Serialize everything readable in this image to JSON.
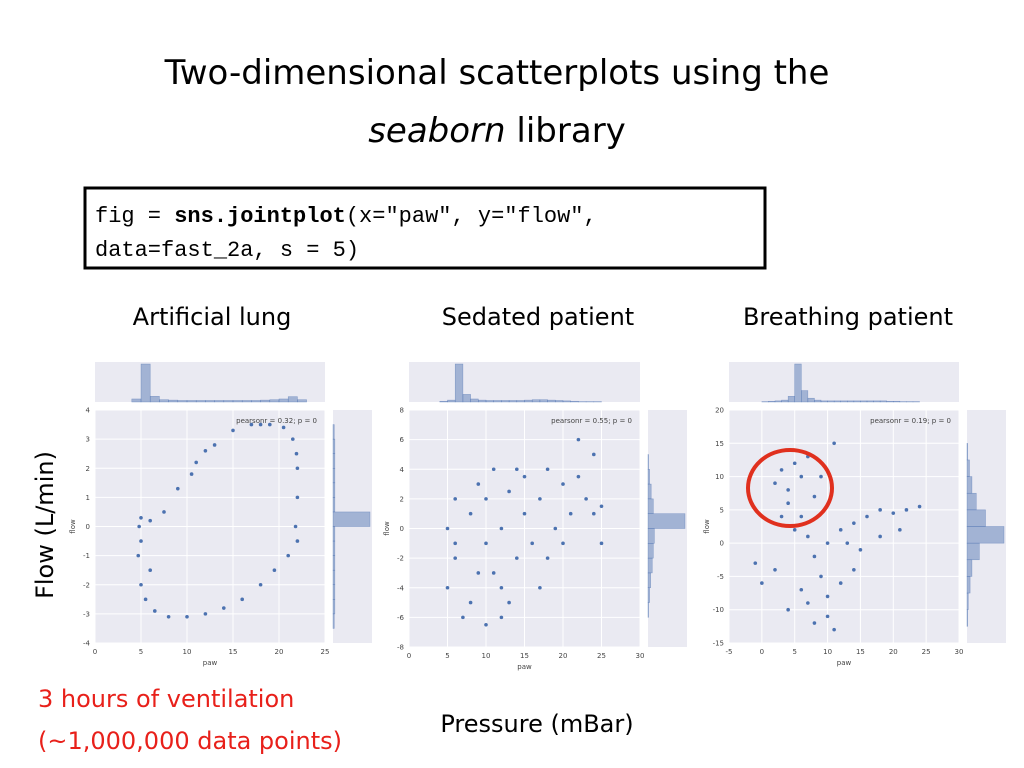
{
  "title": "Two-dimensional scatterplots using the",
  "title_italic": "seaborn",
  "title_end": "library",
  "code": {
    "line1_prefix": "fig = ",
    "line1_bold": "sns.jointplot",
    "line1_rest": "(x=\"paw\", y=\"flow\",",
    "line2": "data=fast_2a, s = 5)"
  },
  "y_label": "Flow (L/min)",
  "x_label": "Pressure (mBar)",
  "note_lines": [
    "3 hours of ventilation",
    "(~1,000,000 data points)"
  ],
  "chart_data": [
    {
      "type": "scatter",
      "title": "Artificial lung",
      "xlabel": "paw",
      "ylabel": "flow",
      "annotation": "pearsonr = 0.32; p = 0",
      "xlim": [
        0,
        25
      ],
      "xticks": [
        0,
        5,
        10,
        15,
        20,
        25
      ],
      "ylim": [
        -4,
        4
      ],
      "yticks": [
        -4,
        -3,
        -2,
        -1,
        0,
        1,
        2,
        3,
        4
      ],
      "grid": true,
      "series": [
        {
          "color": "#4c72b0",
          "x": [
            4.8,
            4.7,
            5,
            5.5,
            6.5,
            8,
            10,
            12,
            14,
            16,
            18,
            19.5,
            21,
            21.8,
            22,
            22,
            21.5,
            20.5,
            19,
            17,
            15,
            13,
            11,
            9,
            7.5,
            6,
            5,
            5,
            6,
            22,
            21.9,
            10.5,
            18,
            12
          ],
          "values": [
            0,
            -1,
            -2,
            -2.5,
            -2.9,
            -3.1,
            -3.1,
            -3,
            -2.8,
            -2.5,
            -2,
            -1.5,
            -1,
            0,
            1,
            2,
            3,
            3.4,
            3.5,
            3.5,
            3.3,
            2.8,
            2.2,
            1.3,
            0.5,
            0.2,
            0.3,
            -0.5,
            -1.5,
            -0.5,
            2.5,
            1.8,
            3.5,
            2.6
          ]
        }
      ],
      "x_hist": {
        "bins": [
          0,
          1,
          2,
          3,
          4,
          5,
          6,
          7,
          8,
          9,
          10,
          11,
          12,
          13,
          14,
          15,
          16,
          17,
          18,
          19,
          20,
          21,
          22,
          23,
          24,
          25
        ],
        "counts": [
          0,
          0,
          0,
          0,
          8,
          100,
          15,
          6,
          5,
          4,
          4,
          4,
          4,
          4,
          4,
          4,
          4,
          4,
          5,
          6,
          8,
          14,
          6,
          0,
          0
        ]
      },
      "y_hist": {
        "bins": [
          -4,
          -3.5,
          -3,
          -2.5,
          -2,
          -1.5,
          -1,
          -0.5,
          0,
          0.5,
          1,
          1.5,
          2,
          2.5,
          3,
          3.5,
          4
        ],
        "counts": [
          0,
          2,
          3,
          3,
          3,
          3,
          3,
          3,
          60,
          3,
          3,
          3,
          3,
          3,
          2,
          0
        ]
      }
    },
    {
      "type": "scatter",
      "title": "Sedated patient",
      "xlabel": "paw",
      "ylabel": "flow",
      "annotation": "pearsonr = 0.55; p = 0",
      "xlim": [
        0,
        30
      ],
      "xticks": [
        0,
        5,
        10,
        15,
        20,
        25,
        30
      ],
      "ylim": [
        -8,
        8
      ],
      "yticks": [
        -8,
        -6,
        -4,
        -2,
        0,
        2,
        4,
        6,
        8
      ],
      "grid": true,
      "series": [
        {
          "color": "#4c72b0",
          "x": [
            5,
            6,
            5,
            6,
            8,
            9,
            10,
            8,
            10,
            12,
            12,
            13,
            14,
            15,
            15,
            16,
            17,
            18,
            19,
            20,
            21,
            22,
            23,
            24,
            7,
            10,
            12,
            11,
            6,
            18,
            20,
            22,
            24,
            25,
            25,
            17,
            14,
            9,
            11,
            13
          ],
          "values": [
            -4,
            -2,
            0,
            2,
            -5,
            -3,
            -1,
            1,
            2,
            -4,
            0,
            2.5,
            -2,
            1,
            3.5,
            -1,
            2,
            4,
            0,
            3,
            1,
            3.5,
            2,
            1,
            -6,
            -6.5,
            -6,
            -3,
            -1,
            -2,
            -1,
            6,
            5,
            -1,
            1.5,
            -4,
            4,
            3,
            4,
            -5
          ]
        }
      ],
      "x_hist": {
        "bins": [
          0,
          1,
          2,
          3,
          4,
          5,
          6,
          7,
          8,
          9,
          10,
          11,
          12,
          13,
          14,
          15,
          16,
          17,
          18,
          19,
          20,
          21,
          22,
          23,
          24,
          25,
          26,
          27,
          28,
          29,
          30
        ],
        "counts": [
          0,
          0,
          0,
          0,
          2,
          5,
          100,
          20,
          8,
          5,
          4,
          4,
          4,
          4,
          4,
          5,
          6,
          6,
          5,
          4,
          3,
          2,
          1,
          1,
          1,
          0,
          0,
          0,
          0,
          0
        ]
      },
      "y_hist": {
        "bins": [
          -8,
          -7,
          -6,
          -5,
          -4,
          -3,
          -2,
          -1,
          0,
          1,
          2,
          3,
          4,
          5,
          6,
          7,
          8
        ],
        "counts": [
          0,
          0,
          1,
          3,
          5,
          8,
          10,
          12,
          70,
          10,
          6,
          3,
          1,
          0,
          0,
          0
        ]
      }
    },
    {
      "type": "scatter",
      "title": "Breathing patient",
      "xlabel": "paw",
      "ylabel": "flow",
      "annotation": "pearsonr = 0.19; p = 0",
      "xlim": [
        -5,
        30
      ],
      "xticks": [
        -5,
        0,
        5,
        10,
        15,
        20,
        25,
        30
      ],
      "ylim": [
        -15,
        20
      ],
      "yticks": [
        -15,
        -10,
        -5,
        0,
        5,
        10,
        15,
        20
      ],
      "grid": true,
      "series": [
        {
          "color": "#4c72b0",
          "x": [
            2,
            3,
            4,
            5,
            6,
            7,
            4,
            6,
            8,
            9,
            3,
            7,
            5,
            8,
            9,
            10,
            10,
            8,
            11,
            12,
            7,
            6,
            4,
            12,
            14,
            16,
            18,
            20,
            22,
            24,
            15,
            18,
            21,
            14,
            2,
            0,
            -1,
            11,
            10,
            13
          ],
          "values": [
            9,
            11,
            8,
            12,
            10,
            13,
            6,
            4,
            7,
            10,
            4,
            1,
            2,
            -2,
            -5,
            -8,
            -11,
            -12,
            -13,
            -6,
            -9,
            -7,
            -10,
            2,
            3,
            4,
            5,
            4.5,
            5,
            5.5,
            -1,
            1,
            2,
            -4,
            -4,
            -6,
            -3,
            15,
            0,
            0
          ]
        }
      ],
      "x_hist": {
        "bins": [
          -5,
          -4,
          -3,
          -2,
          -1,
          0,
          1,
          2,
          3,
          4,
          5,
          6,
          7,
          8,
          9,
          10,
          11,
          12,
          13,
          14,
          15,
          16,
          17,
          18,
          19,
          20,
          21,
          22,
          23,
          24,
          25,
          26,
          27,
          28,
          29,
          30
        ],
        "counts": [
          0,
          0,
          0,
          0,
          0,
          1,
          2,
          3,
          5,
          15,
          100,
          30,
          10,
          5,
          3,
          3,
          3,
          3,
          3,
          3,
          3,
          3,
          3,
          3,
          2,
          2,
          1,
          1,
          1,
          0,
          0,
          0,
          0,
          0,
          0
        ]
      },
      "y_hist": {
        "bins": [
          -15,
          -12.5,
          -10,
          -7.5,
          -5,
          -2.5,
          0,
          2.5,
          5,
          7.5,
          10,
          12.5,
          15,
          17.5,
          20
        ],
        "counts": [
          0,
          1,
          2,
          5,
          8,
          20,
          60,
          30,
          15,
          8,
          4,
          1,
          0,
          0
        ]
      }
    }
  ]
}
